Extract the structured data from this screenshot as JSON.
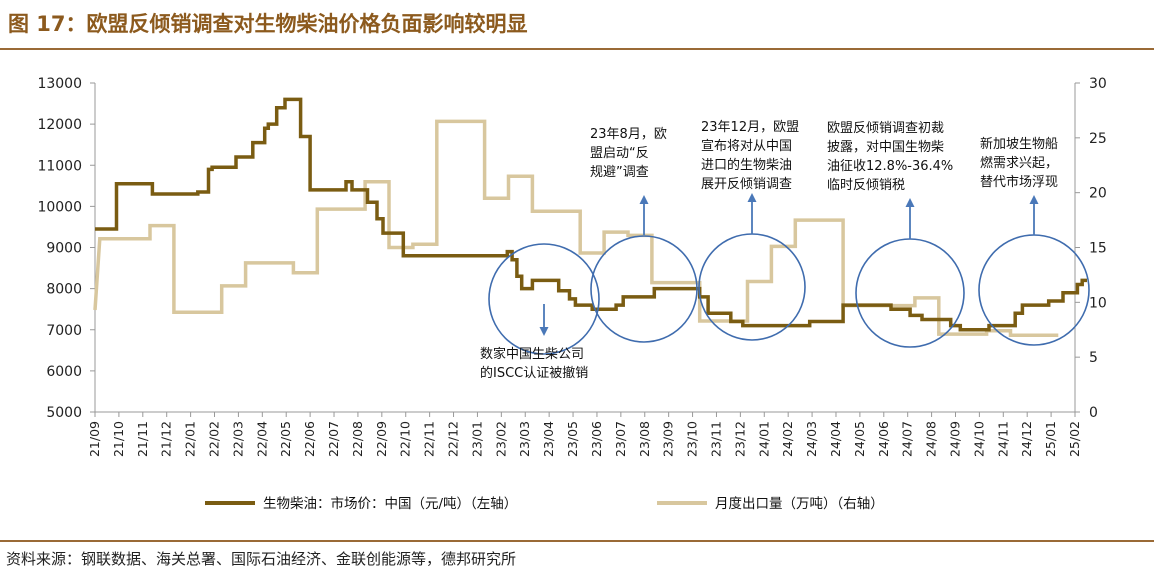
{
  "figure": {
    "title": "图 17：欧盟反倾销调查对生物柴油价格负面影响较明显",
    "source": "资料来源：钢联数据、海关总署、国际石油经济、金联创能源等，德邦研究所"
  },
  "colors": {
    "title": "#8c5a1e",
    "rule": "#9a6a36",
    "price_line": "#7a5c12",
    "export_line": "#d8c79e",
    "circle": "#3f6cae",
    "arrow": "#4a78b8",
    "axis": "#999999"
  },
  "chart_data": {
    "type": "line",
    "title": "欧盟反倾销调查对生物柴油价格负面影响较明显",
    "xlabel": "",
    "categories": [
      "21/09",
      "21/10",
      "21/11",
      "21/12",
      "22/01",
      "22/02",
      "22/03",
      "22/04",
      "22/05",
      "22/06",
      "22/07",
      "22/08",
      "22/09",
      "22/10",
      "22/11",
      "22/12",
      "23/01",
      "23/02",
      "23/03",
      "23/04",
      "23/05",
      "23/06",
      "23/07",
      "23/08",
      "23/09",
      "23/10",
      "23/11",
      "23/12",
      "24/01",
      "24/02",
      "24/03",
      "24/04",
      "24/05",
      "24/06",
      "24/07",
      "24/08",
      "24/09",
      "24/10",
      "24/11",
      "24/12",
      "25/01",
      "25/02"
    ],
    "y_left": {
      "ylim": [
        5000,
        13000
      ],
      "ticks": [
        5000,
        6000,
        7000,
        8000,
        9000,
        10000,
        11000,
        12000,
        13000
      ]
    },
    "y_right": {
      "ylim": [
        0,
        30
      ],
      "ticks": [
        0,
        5,
        10,
        15,
        20,
        25,
        30
      ]
    },
    "series": [
      {
        "name": "生物柴油：市场价：中国（元/吨）（左轴）",
        "axis": "left",
        "points": [
          [
            0,
            9450
          ],
          [
            0.9,
            9450
          ],
          [
            0.9,
            10550
          ],
          [
            2.4,
            10550
          ],
          [
            2.4,
            10300
          ],
          [
            4.3,
            10300
          ],
          [
            4.3,
            10350
          ],
          [
            4.75,
            10350
          ],
          [
            4.75,
            10900
          ],
          [
            4.9,
            10900
          ],
          [
            4.9,
            10950
          ],
          [
            5.9,
            10950
          ],
          [
            5.9,
            11200
          ],
          [
            6.6,
            11200
          ],
          [
            6.6,
            11550
          ],
          [
            7.1,
            11550
          ],
          [
            7.1,
            11900
          ],
          [
            7.25,
            11900
          ],
          [
            7.25,
            12000
          ],
          [
            7.6,
            12000
          ],
          [
            7.6,
            12400
          ],
          [
            7.95,
            12400
          ],
          [
            7.95,
            12600
          ],
          [
            8.6,
            12600
          ],
          [
            8.6,
            11700
          ],
          [
            9.0,
            11700
          ],
          [
            9.0,
            10400
          ],
          [
            10.5,
            10400
          ],
          [
            10.5,
            10600
          ],
          [
            10.75,
            10600
          ],
          [
            10.75,
            10400
          ],
          [
            11.4,
            10400
          ],
          [
            11.4,
            10100
          ],
          [
            11.8,
            10100
          ],
          [
            11.8,
            9700
          ],
          [
            12.05,
            9700
          ],
          [
            12.05,
            9350
          ],
          [
            12.9,
            9350
          ],
          [
            12.9,
            8800
          ],
          [
            17.25,
            8800
          ],
          [
            17.25,
            8900
          ],
          [
            17.45,
            8900
          ],
          [
            17.45,
            8700
          ],
          [
            17.65,
            8700
          ],
          [
            17.65,
            8300
          ],
          [
            17.85,
            8300
          ],
          [
            17.85,
            8000
          ],
          [
            18.3,
            8000
          ],
          [
            18.3,
            8200
          ],
          [
            19.4,
            8200
          ],
          [
            19.4,
            7950
          ],
          [
            19.85,
            7950
          ],
          [
            19.85,
            7750
          ],
          [
            20.1,
            7750
          ],
          [
            20.1,
            7600
          ],
          [
            20.8,
            7600
          ],
          [
            20.8,
            7500
          ],
          [
            21.8,
            7500
          ],
          [
            21.8,
            7600
          ],
          [
            22.1,
            7600
          ],
          [
            22.1,
            7800
          ],
          [
            23.4,
            7800
          ],
          [
            23.4,
            8000
          ],
          [
            25.3,
            8000
          ],
          [
            25.3,
            7800
          ],
          [
            25.65,
            7800
          ],
          [
            25.65,
            7400
          ],
          [
            26.6,
            7400
          ],
          [
            26.6,
            7200
          ],
          [
            27.1,
            7200
          ],
          [
            27.1,
            7100
          ],
          [
            29.9,
            7100
          ],
          [
            29.9,
            7200
          ],
          [
            31.3,
            7200
          ],
          [
            31.3,
            7600
          ],
          [
            33.3,
            7600
          ],
          [
            33.3,
            7500
          ],
          [
            34.1,
            7500
          ],
          [
            34.1,
            7350
          ],
          [
            34.6,
            7350
          ],
          [
            34.6,
            7250
          ],
          [
            35.8,
            7250
          ],
          [
            35.8,
            7100
          ],
          [
            36.2,
            7100
          ],
          [
            36.2,
            7000
          ],
          [
            37.4,
            7000
          ],
          [
            37.4,
            7100
          ],
          [
            38.5,
            7100
          ],
          [
            38.5,
            7400
          ],
          [
            38.8,
            7400
          ],
          [
            38.8,
            7600
          ],
          [
            39.9,
            7600
          ],
          [
            39.9,
            7700
          ],
          [
            40.5,
            7700
          ],
          [
            40.5,
            7900
          ],
          [
            41.1,
            7900
          ],
          [
            41.1,
            8100
          ],
          [
            41.3,
            8100
          ],
          [
            41.3,
            8200
          ],
          [
            41.5,
            8200
          ]
        ]
      },
      {
        "name": "月度出口量（万吨）（右轴）",
        "axis": "right",
        "points": [
          [
            0,
            9.3
          ],
          [
            0.2,
            15.8
          ],
          [
            2.3,
            15.8
          ],
          [
            2.3,
            17.0
          ],
          [
            3.3,
            17.0
          ],
          [
            3.3,
            9.1
          ],
          [
            5.3,
            9.1
          ],
          [
            5.3,
            11.5
          ],
          [
            6.3,
            11.5
          ],
          [
            6.3,
            13.6
          ],
          [
            8.3,
            13.6
          ],
          [
            8.3,
            12.7
          ],
          [
            9.3,
            12.7
          ],
          [
            9.3,
            18.5
          ],
          [
            11.3,
            18.5
          ],
          [
            11.3,
            21.0
          ],
          [
            12.3,
            21.0
          ],
          [
            12.3,
            15.0
          ],
          [
            13.3,
            15.0
          ],
          [
            13.3,
            15.3
          ],
          [
            14.3,
            15.3
          ],
          [
            14.3,
            26.5
          ],
          [
            16.3,
            26.5
          ],
          [
            16.3,
            19.5
          ],
          [
            17.3,
            19.5
          ],
          [
            17.3,
            21.5
          ],
          [
            18.3,
            21.5
          ],
          [
            18.3,
            18.3
          ],
          [
            20.3,
            18.3
          ],
          [
            20.3,
            14.5
          ],
          [
            21.3,
            14.5
          ],
          [
            21.3,
            16.4
          ],
          [
            22.3,
            16.4
          ],
          [
            22.3,
            16.1
          ],
          [
            23.3,
            16.1
          ],
          [
            23.3,
            11.8
          ],
          [
            25.3,
            11.8
          ],
          [
            25.3,
            8.3
          ],
          [
            27.3,
            8.3
          ],
          [
            27.3,
            11.9
          ],
          [
            28.3,
            11.9
          ],
          [
            28.3,
            15.1
          ],
          [
            29.3,
            15.1
          ],
          [
            29.3,
            17.5
          ],
          [
            31.3,
            17.5
          ],
          [
            31.3,
            9.7
          ],
          [
            34.3,
            9.7
          ],
          [
            34.3,
            10.4
          ],
          [
            35.3,
            10.4
          ],
          [
            35.3,
            7.1
          ],
          [
            37.3,
            7.1
          ],
          [
            37.3,
            7.4
          ],
          [
            38.3,
            7.4
          ],
          [
            38.3,
            7.0
          ],
          [
            40.3,
            7.0
          ]
        ]
      }
    ],
    "legend": [
      {
        "label": "生物柴油：市场价：中国（元/吨）（左轴）",
        "series": 0
      },
      {
        "label": "月度出口量（万吨）（右轴）",
        "series": 1
      }
    ],
    "legend_position": "bottom",
    "annotations": [
      {
        "lines": [
          "数家中国生柴公司",
          "的ISCC认证被撤销"
        ],
        "at_category": "23/04",
        "arrow": "down"
      },
      {
        "lines": [
          "23年8月，欧",
          "盟启动“反",
          "规避”调查"
        ],
        "at_category": "23/08",
        "arrow": "up"
      },
      {
        "lines": [
          "23年12月，欧盟",
          "宣布将对从中国",
          "进口的生物柴油",
          "展开反倾销调查"
        ],
        "at_category": "24/01",
        "arrow": "up"
      },
      {
        "lines": [
          "欧盟反倾销调查初裁",
          "披露，对中国生物柴",
          "油征收12.8%-36.4%",
          "临时反倾销税"
        ],
        "at_category": "24/07",
        "arrow": "up"
      },
      {
        "lines": [
          "新加坡生物船",
          "燃需求兴起，",
          "替代市场浮现"
        ],
        "at_category": "25/01",
        "arrow": "up"
      }
    ]
  }
}
